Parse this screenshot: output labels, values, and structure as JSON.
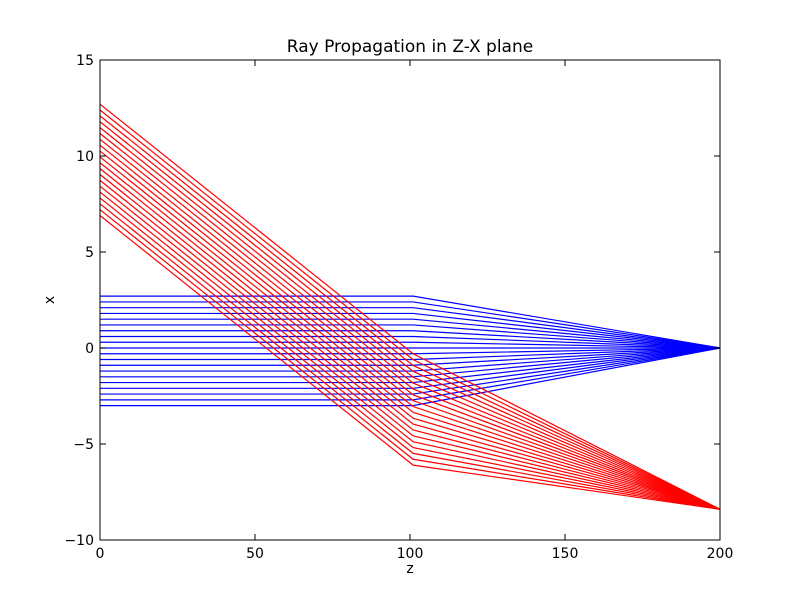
{
  "chart_data": {
    "type": "line",
    "title": "Ray Propagation in Z-X plane",
    "xlabel": "z",
    "ylabel": "x",
    "xlim": [
      0,
      200
    ],
    "ylim": [
      -10,
      15
    ],
    "xticks": [
      0,
      50,
      100,
      150,
      200
    ],
    "yticks": [
      -10,
      -5,
      0,
      5,
      10,
      15
    ],
    "xtick_labels": [
      "0",
      "50",
      "100",
      "150",
      "200"
    ],
    "ytick_labels": [
      "−10",
      "−5",
      "0",
      "5",
      "10",
      "15"
    ],
    "grid": false,
    "legend": "none",
    "series_groups": [
      {
        "color": "#0000ff",
        "count": 20,
        "z": [
          0,
          101,
          200
        ],
        "x_at_0_range": [
          -3.0,
          2.7
        ],
        "x_at_101_range": [
          -3.0,
          2.7
        ],
        "x_at_200": 0.0
      },
      {
        "color": "#ff0000",
        "count": 20,
        "z": [
          0,
          101,
          200
        ],
        "x_at_0_range": [
          6.9,
          12.7
        ],
        "x_at_101_range": [
          -6.1,
          -0.3
        ],
        "x_at_200": -8.4
      }
    ]
  }
}
